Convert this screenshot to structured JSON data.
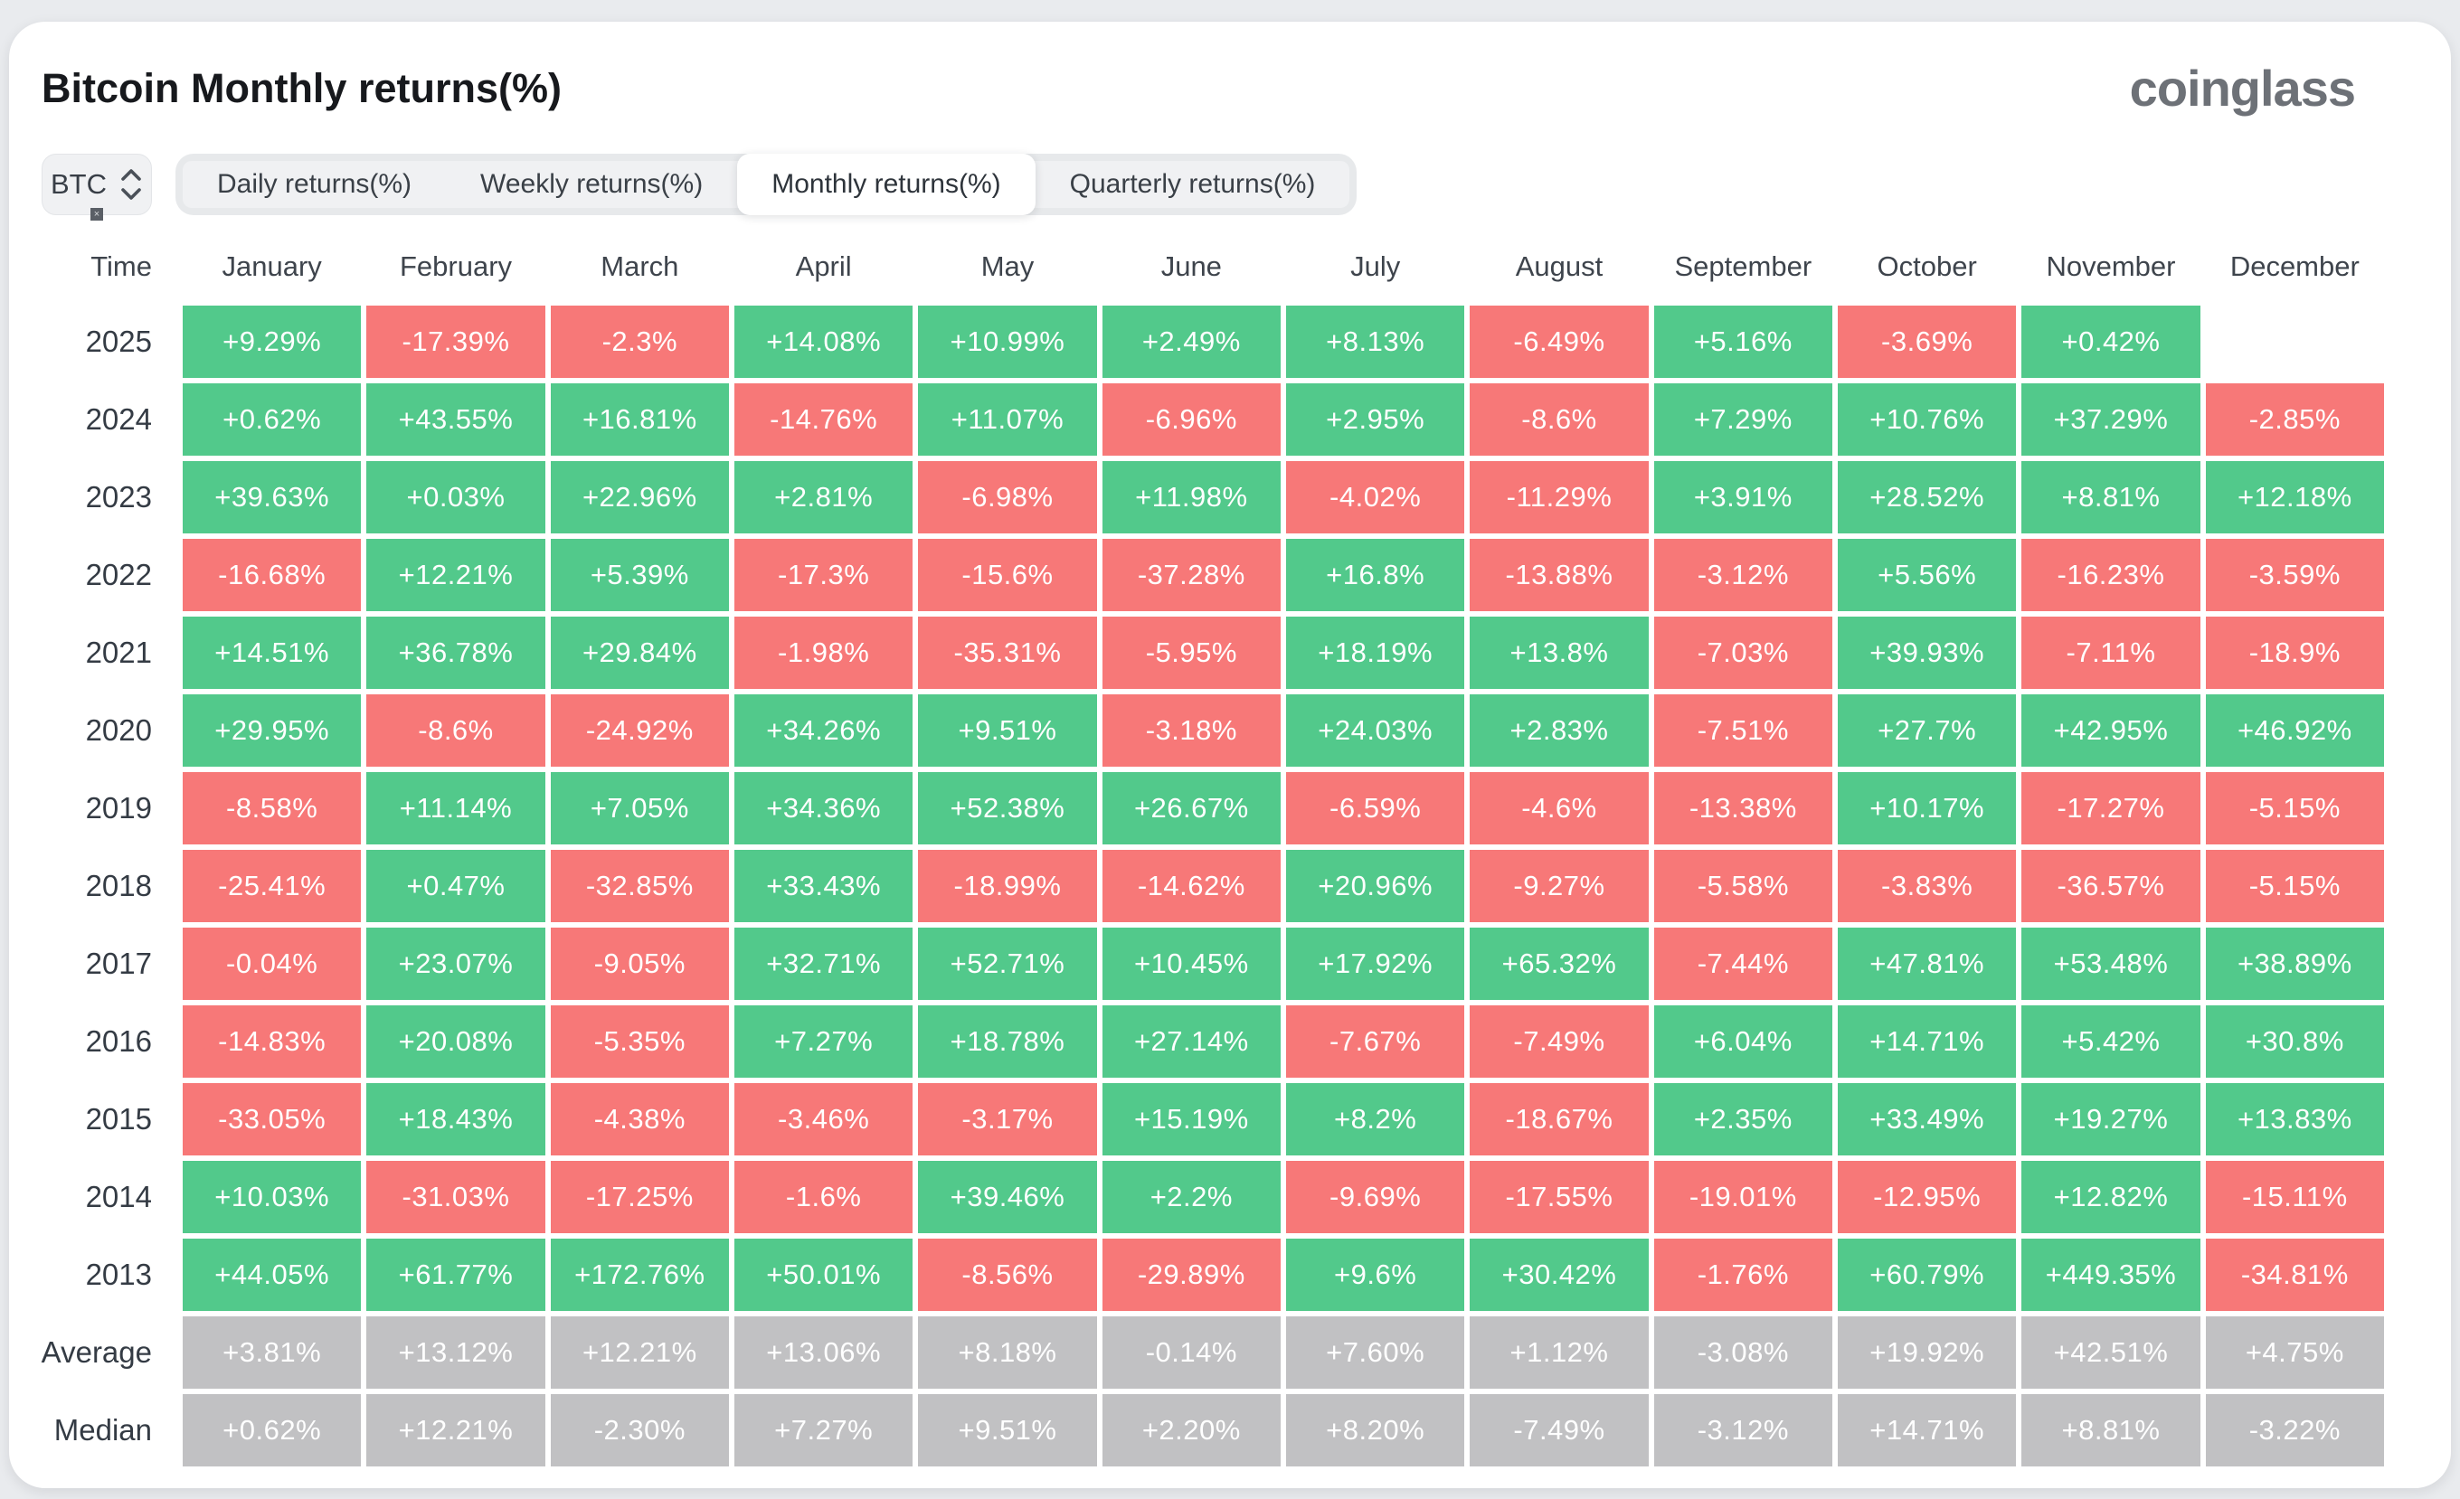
{
  "page": {
    "title": "Bitcoin Monthly returns(%)",
    "logo": "coinglass"
  },
  "controls": {
    "symbol": "BTC",
    "tabs": [
      {
        "label": "Daily returns(%)",
        "active": false
      },
      {
        "label": "Weekly returns(%)",
        "active": false
      },
      {
        "label": "Monthly returns(%)",
        "active": true
      },
      {
        "label": "Quarterly returns(%)",
        "active": false
      }
    ]
  },
  "chart_data": {
    "type": "table",
    "title": "Bitcoin Monthly returns(%)",
    "columns": [
      "Time",
      "January",
      "February",
      "March",
      "April",
      "May",
      "June",
      "July",
      "August",
      "September",
      "October",
      "November",
      "December"
    ],
    "colors": {
      "positive": "#52c98b",
      "negative": "#f77878",
      "summary": "#c1c1c3",
      "value_text": "#ffffff"
    },
    "rows": [
      {
        "label": "2025",
        "summary": false,
        "values": [
          "+9.29%",
          "-17.39%",
          "-2.3%",
          "+14.08%",
          "+10.99%",
          "+2.49%",
          "+8.13%",
          "-6.49%",
          "+5.16%",
          "-3.69%",
          "+0.42%",
          ""
        ]
      },
      {
        "label": "2024",
        "summary": false,
        "values": [
          "+0.62%",
          "+43.55%",
          "+16.81%",
          "-14.76%",
          "+11.07%",
          "-6.96%",
          "+2.95%",
          "-8.6%",
          "+7.29%",
          "+10.76%",
          "+37.29%",
          "-2.85%"
        ]
      },
      {
        "label": "2023",
        "summary": false,
        "values": [
          "+39.63%",
          "+0.03%",
          "+22.96%",
          "+2.81%",
          "-6.98%",
          "+11.98%",
          "-4.02%",
          "-11.29%",
          "+3.91%",
          "+28.52%",
          "+8.81%",
          "+12.18%"
        ]
      },
      {
        "label": "2022",
        "summary": false,
        "values": [
          "-16.68%",
          "+12.21%",
          "+5.39%",
          "-17.3%",
          "-15.6%",
          "-37.28%",
          "+16.8%",
          "-13.88%",
          "-3.12%",
          "+5.56%",
          "-16.23%",
          "-3.59%"
        ]
      },
      {
        "label": "2021",
        "summary": false,
        "values": [
          "+14.51%",
          "+36.78%",
          "+29.84%",
          "-1.98%",
          "-35.31%",
          "-5.95%",
          "+18.19%",
          "+13.8%",
          "-7.03%",
          "+39.93%",
          "-7.11%",
          "-18.9%"
        ]
      },
      {
        "label": "2020",
        "summary": false,
        "values": [
          "+29.95%",
          "-8.6%",
          "-24.92%",
          "+34.26%",
          "+9.51%",
          "-3.18%",
          "+24.03%",
          "+2.83%",
          "-7.51%",
          "+27.7%",
          "+42.95%",
          "+46.92%"
        ]
      },
      {
        "label": "2019",
        "summary": false,
        "values": [
          "-8.58%",
          "+11.14%",
          "+7.05%",
          "+34.36%",
          "+52.38%",
          "+26.67%",
          "-6.59%",
          "-4.6%",
          "-13.38%",
          "+10.17%",
          "-17.27%",
          "-5.15%"
        ]
      },
      {
        "label": "2018",
        "summary": false,
        "values": [
          "-25.41%",
          "+0.47%",
          "-32.85%",
          "+33.43%",
          "-18.99%",
          "-14.62%",
          "+20.96%",
          "-9.27%",
          "-5.58%",
          "-3.83%",
          "-36.57%",
          "-5.15%"
        ]
      },
      {
        "label": "2017",
        "summary": false,
        "values": [
          "-0.04%",
          "+23.07%",
          "-9.05%",
          "+32.71%",
          "+52.71%",
          "+10.45%",
          "+17.92%",
          "+65.32%",
          "-7.44%",
          "+47.81%",
          "+53.48%",
          "+38.89%"
        ]
      },
      {
        "label": "2016",
        "summary": false,
        "values": [
          "-14.83%",
          "+20.08%",
          "-5.35%",
          "+7.27%",
          "+18.78%",
          "+27.14%",
          "-7.67%",
          "-7.49%",
          "+6.04%",
          "+14.71%",
          "+5.42%",
          "+30.8%"
        ]
      },
      {
        "label": "2015",
        "summary": false,
        "values": [
          "-33.05%",
          "+18.43%",
          "-4.38%",
          "-3.46%",
          "-3.17%",
          "+15.19%",
          "+8.2%",
          "-18.67%",
          "+2.35%",
          "+33.49%",
          "+19.27%",
          "+13.83%"
        ]
      },
      {
        "label": "2014",
        "summary": false,
        "values": [
          "+10.03%",
          "-31.03%",
          "-17.25%",
          "-1.6%",
          "+39.46%",
          "+2.2%",
          "-9.69%",
          "-17.55%",
          "-19.01%",
          "-12.95%",
          "+12.82%",
          "-15.11%"
        ]
      },
      {
        "label": "2013",
        "summary": false,
        "values": [
          "+44.05%",
          "+61.77%",
          "+172.76%",
          "+50.01%",
          "-8.56%",
          "-29.89%",
          "+9.6%",
          "+30.42%",
          "-1.76%",
          "+60.79%",
          "+449.35%",
          "-34.81%"
        ]
      },
      {
        "label": "Average",
        "summary": true,
        "values": [
          "+3.81%",
          "+13.12%",
          "+12.21%",
          "+13.06%",
          "+8.18%",
          "-0.14%",
          "+7.60%",
          "+1.12%",
          "-3.08%",
          "+19.92%",
          "+42.51%",
          "+4.75%"
        ]
      },
      {
        "label": "Median",
        "summary": true,
        "values": [
          "+0.62%",
          "+12.21%",
          "-2.30%",
          "+7.27%",
          "+9.51%",
          "+2.20%",
          "+8.20%",
          "-7.49%",
          "-3.12%",
          "+14.71%",
          "+8.81%",
          "-3.22%"
        ]
      }
    ]
  }
}
